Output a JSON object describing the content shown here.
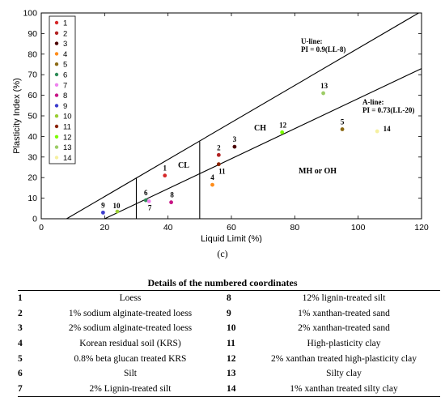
{
  "chart_data": {
    "type": "scatter",
    "title": "",
    "xlabel": "Liquid Limit (%)",
    "ylabel": "Plasticity Index (%)",
    "xlim": [
      0,
      120
    ],
    "ylim": [
      0,
      100
    ],
    "x_ticks": [
      "0",
      "20",
      "40",
      "60",
      "80",
      "100",
      "120"
    ],
    "y_ticks": [
      "0",
      "10",
      "20",
      "30",
      "40",
      "50",
      "60",
      "70",
      "80",
      "90",
      "100"
    ],
    "grid": false,
    "legend_position": "top-left",
    "points": [
      {
        "label": "1",
        "x": 39,
        "y": 21,
        "color": "#d62728"
      },
      {
        "label": "2",
        "x": 56,
        "y": 31,
        "color": "#b22222"
      },
      {
        "label": "3",
        "x": 61,
        "y": 35,
        "color": "#4a0000"
      },
      {
        "label": "4",
        "x": 54,
        "y": 16.5,
        "color": "#ff8c1a"
      },
      {
        "label": "5",
        "x": 95,
        "y": 43.5,
        "color": "#8b6914"
      },
      {
        "label": "6",
        "x": 33,
        "y": 9,
        "color": "#2e8b57"
      },
      {
        "label": "7",
        "x": 34,
        "y": 8.5,
        "color": "#ee82ee"
      },
      {
        "label": "8",
        "x": 41,
        "y": 8,
        "color": "#c71585"
      },
      {
        "label": "9",
        "x": 19.5,
        "y": 3,
        "color": "#3b3bcc"
      },
      {
        "label": "10",
        "x": 24,
        "y": 3.5,
        "color": "#9acd32"
      },
      {
        "label": "11",
        "x": 56,
        "y": 26.5,
        "color": "#8b2500"
      },
      {
        "label": "12",
        "x": 76,
        "y": 42,
        "color": "#7cfc00"
      },
      {
        "label": "13",
        "x": 89,
        "y": 61,
        "color": "#9ccc65"
      },
      {
        "label": "14",
        "x": 106,
        "y": 42.5,
        "color": "#f5f0a0"
      }
    ],
    "lines": [
      {
        "name": "U-line",
        "label_line1": "U-line:",
        "label_line2": "PI = 0.9(LL-8)",
        "x": [
          8,
          119.1
        ],
        "y": [
          0,
          100
        ]
      },
      {
        "name": "A-line",
        "label_line1": "A-line:",
        "label_line2": "PI = 0.73(LL-20)",
        "x": [
          20,
          120
        ],
        "y": [
          0,
          73
        ]
      }
    ],
    "boundaries": [
      {
        "x": 30,
        "y": [
          0,
          20
        ]
      },
      {
        "x": 50,
        "y": [
          0,
          37.5
        ]
      }
    ],
    "regions": [
      "CL",
      "CH",
      "MH or OH"
    ]
  },
  "caption": "(c)",
  "details": {
    "title": "Details of the numbered coordinates",
    "rows": [
      {
        "n1": "1",
        "d1": "Loess",
        "n2": "8",
        "d2": "12% lignin-treated silt"
      },
      {
        "n1": "2",
        "d1": "1% sodium alginate-treated loess",
        "n2": "9",
        "d2": "1% xanthan-treated sand"
      },
      {
        "n1": "3",
        "d1": "2% sodium alginate-treated loess",
        "n2": "10",
        "d2": "2% xanthan-treated sand"
      },
      {
        "n1": "4",
        "d1": "Korean residual soil (KRS)",
        "n2": "11",
        "d2": "High-plasticity clay"
      },
      {
        "n1": "5",
        "d1": "0.8% beta glucan treated KRS",
        "n2": "12",
        "d2": "2% xanthan treated high-plasticity clay"
      },
      {
        "n1": "6",
        "d1": "Silt",
        "n2": "13",
        "d2": "Silty clay"
      },
      {
        "n1": "7",
        "d1": "2% Lignin-treated silt",
        "n2": "14",
        "d2": "1% xanthan treated silty clay"
      }
    ]
  }
}
